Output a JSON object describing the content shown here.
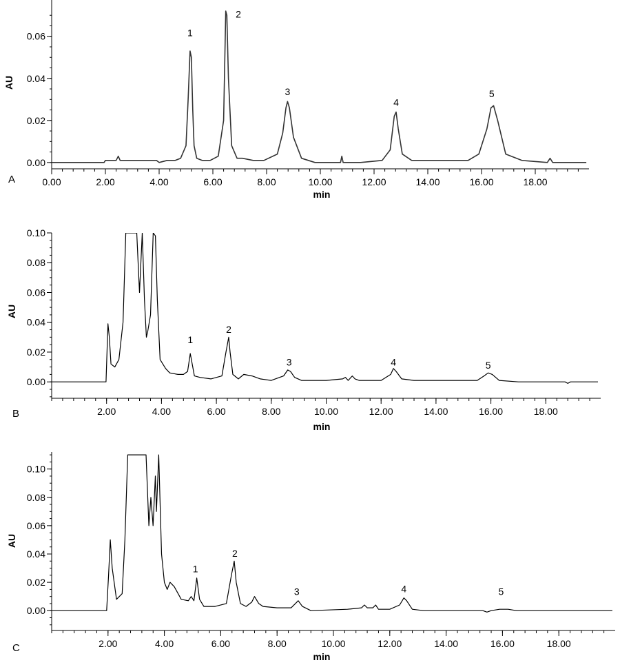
{
  "chart_data": [
    {
      "type": "line",
      "panel_label": "A",
      "xlabel": "min",
      "ylabel": "AU",
      "xlim": [
        0,
        20
      ],
      "ylim": [
        -0.003,
        0.074
      ],
      "x_ticks": [
        0,
        2,
        4,
        6,
        8,
        10,
        12,
        14,
        16,
        18
      ],
      "x_tick_labels": [
        "0.00",
        "2.00",
        "4.00",
        "6.00",
        "8.00",
        "10.00",
        "12.00",
        "14.00",
        "16.00",
        "18.00"
      ],
      "y_ticks": [
        0,
        0.02,
        0.04,
        0.06
      ],
      "y_tick_labels": [
        "0.00",
        "0.02",
        "0.04",
        "0.06"
      ],
      "series": [
        {
          "x": [
            0,
            1.95,
            2.0,
            2.3,
            2.4,
            2.48,
            2.55,
            2.7,
            3.0,
            3.5,
            3.9,
            4.0,
            4.3,
            4.6,
            4.8,
            5.0,
            5.08,
            5.15,
            5.2,
            5.25,
            5.3,
            5.4,
            5.6,
            5.9,
            6.2,
            6.4,
            6.48,
            6.52,
            6.58,
            6.7,
            6.9,
            7.1,
            7.5,
            7.9,
            8.4,
            8.6,
            8.72,
            8.78,
            8.85,
            9.0,
            9.3,
            9.8,
            10.3,
            10.75,
            10.8,
            10.85,
            11.5,
            12.3,
            12.6,
            12.75,
            12.82,
            12.9,
            13.05,
            13.4,
            14.0,
            15.0,
            15.5,
            15.9,
            16.2,
            16.35,
            16.45,
            16.6,
            16.9,
            17.5,
            18.45,
            18.55,
            18.65,
            19.9
          ],
          "y": [
            0.0,
            0.0,
            0.001,
            0.001,
            0.001,
            0.003,
            0.001,
            0.001,
            0.001,
            0.001,
            0.001,
            0.0,
            0.001,
            0.001,
            0.002,
            0.008,
            0.03,
            0.053,
            0.05,
            0.025,
            0.008,
            0.002,
            0.001,
            0.001,
            0.003,
            0.02,
            0.072,
            0.07,
            0.04,
            0.008,
            0.002,
            0.002,
            0.001,
            0.001,
            0.004,
            0.014,
            0.026,
            0.029,
            0.026,
            0.012,
            0.002,
            0.0,
            0.0,
            0.0,
            0.003,
            0.0,
            0.0,
            0.001,
            0.006,
            0.022,
            0.024,
            0.016,
            0.004,
            0.001,
            0.001,
            0.001,
            0.001,
            0.004,
            0.016,
            0.026,
            0.027,
            0.02,
            0.004,
            0.001,
            0.0,
            0.002,
            0.0,
            0.0
          ]
        }
      ],
      "annotations": [
        {
          "text": "1",
          "x": 5.15,
          "y": 0.06
        },
        {
          "text": "2",
          "x": 6.95,
          "y": 0.069
        },
        {
          "text": "3",
          "x": 8.78,
          "y": 0.032
        },
        {
          "text": "4",
          "x": 12.82,
          "y": 0.027
        },
        {
          "text": "5",
          "x": 16.38,
          "y": 0.031
        }
      ]
    },
    {
      "type": "line",
      "panel_label": "B",
      "xlabel": "min",
      "ylabel": "AU",
      "xlim": [
        0,
        20
      ],
      "ylim": [
        -0.011,
        0.1
      ],
      "x_ticks": [
        2,
        4,
        6,
        8,
        10,
        12,
        14,
        16,
        18
      ],
      "x_tick_labels": [
        "2.00",
        "4.00",
        "6.00",
        "8.00",
        "10.00",
        "12.00",
        "14.00",
        "16.00",
        "18.00"
      ],
      "y_ticks": [
        0,
        0.02,
        0.04,
        0.06,
        0.08,
        0.1
      ],
      "y_tick_labels": [
        "0.00",
        "0.02",
        "0.04",
        "0.06",
        "0.08",
        "0.10"
      ],
      "series": [
        {
          "x": [
            0,
            1.98,
            2.05,
            2.1,
            2.16,
            2.3,
            2.45,
            2.6,
            2.7,
            2.8,
            3.0,
            3.1,
            3.2,
            3.3,
            3.38,
            3.45,
            3.5,
            3.6,
            3.7,
            3.78,
            3.85,
            3.95,
            4.05,
            4.15,
            4.3,
            4.6,
            4.8,
            4.95,
            5.05,
            5.1,
            5.2,
            5.4,
            5.8,
            6.2,
            6.35,
            6.45,
            6.5,
            6.6,
            6.8,
            7.0,
            7.3,
            7.6,
            8.0,
            8.45,
            8.6,
            8.7,
            8.85,
            9.1,
            10.0,
            10.6,
            10.7,
            10.8,
            10.95,
            11.05,
            11.2,
            12.0,
            12.35,
            12.45,
            12.55,
            12.75,
            13.2,
            14.0,
            15.5,
            15.75,
            15.9,
            16.05,
            16.3,
            17.0,
            18.7,
            18.8,
            18.9,
            19.9
          ],
          "y": [
            0.0,
            0.0,
            0.039,
            0.03,
            0.012,
            0.01,
            0.015,
            0.04,
            0.1,
            0.1,
            0.1,
            0.1,
            0.06,
            0.1,
            0.055,
            0.03,
            0.034,
            0.045,
            0.1,
            0.098,
            0.055,
            0.015,
            0.012,
            0.009,
            0.006,
            0.005,
            0.005,
            0.007,
            0.019,
            0.014,
            0.004,
            0.003,
            0.002,
            0.004,
            0.02,
            0.03,
            0.02,
            0.005,
            0.002,
            0.005,
            0.004,
            0.002,
            0.001,
            0.004,
            0.008,
            0.007,
            0.003,
            0.001,
            0.001,
            0.002,
            0.003,
            0.001,
            0.004,
            0.002,
            0.001,
            0.001,
            0.005,
            0.009,
            0.007,
            0.002,
            0.001,
            0.001,
            0.001,
            0.004,
            0.006,
            0.005,
            0.001,
            0.0,
            0.0,
            -0.001,
            0.0,
            0.0
          ]
        }
      ],
      "annotations": [
        {
          "text": "1",
          "x": 5.05,
          "y": 0.026
        },
        {
          "text": "2",
          "x": 6.45,
          "y": 0.033
        },
        {
          "text": "3",
          "x": 8.65,
          "y": 0.011
        },
        {
          "text": "4",
          "x": 12.45,
          "y": 0.011
        },
        {
          "text": "5",
          "x": 15.9,
          "y": 0.009
        }
      ]
    },
    {
      "type": "line",
      "panel_label": "C",
      "xlabel": "min",
      "ylabel": "AU",
      "xlim": [
        0,
        20
      ],
      "ylim": [
        -0.014,
        0.112
      ],
      "x_ticks": [
        2,
        4,
        6,
        8,
        10,
        12,
        14,
        16,
        18
      ],
      "x_tick_labels": [
        "2.00",
        "4.00",
        "6.00",
        "8.00",
        "10.00",
        "12.00",
        "14.00",
        "16.00",
        "18.00"
      ],
      "y_ticks": [
        0,
        0.02,
        0.04,
        0.06,
        0.08,
        0.1
      ],
      "y_tick_labels": [
        "0.00",
        "0.02",
        "0.04",
        "0.06",
        "0.08",
        "0.10"
      ],
      "series": [
        {
          "x": [
            0,
            1.95,
            2.02,
            2.08,
            2.15,
            2.3,
            2.5,
            2.6,
            2.7,
            2.8,
            3.2,
            3.35,
            3.45,
            3.52,
            3.6,
            3.68,
            3.72,
            3.8,
            3.9,
            4.0,
            4.1,
            4.2,
            4.35,
            4.6,
            4.85,
            4.95,
            5.05,
            5.15,
            5.25,
            5.4,
            5.8,
            6.2,
            6.38,
            6.48,
            6.55,
            6.7,
            6.9,
            7.1,
            7.2,
            7.35,
            7.5,
            8.0,
            8.5,
            8.65,
            8.75,
            8.9,
            9.2,
            10.5,
            11.0,
            11.1,
            11.2,
            11.4,
            11.5,
            11.6,
            12.0,
            12.35,
            12.5,
            12.6,
            12.8,
            13.2,
            15.3,
            15.45,
            15.6,
            15.9,
            16.2,
            16.5,
            19.9
          ],
          "y": [
            0.0,
            0.0,
            0.025,
            0.05,
            0.03,
            0.008,
            0.012,
            0.05,
            0.11,
            0.11,
            0.11,
            0.11,
            0.06,
            0.08,
            0.06,
            0.095,
            0.07,
            0.11,
            0.04,
            0.02,
            0.015,
            0.02,
            0.017,
            0.008,
            0.007,
            0.01,
            0.007,
            0.023,
            0.008,
            0.003,
            0.003,
            0.005,
            0.025,
            0.035,
            0.02,
            0.005,
            0.003,
            0.006,
            0.01,
            0.005,
            0.003,
            0.002,
            0.002,
            0.005,
            0.007,
            0.003,
            0.0,
            0.001,
            0.002,
            0.004,
            0.002,
            0.002,
            0.004,
            0.001,
            0.001,
            0.004,
            0.009,
            0.007,
            0.001,
            0.0,
            0.0,
            -0.001,
            0.0,
            0.001,
            0.001,
            0.0,
            0.0
          ]
        }
      ],
      "annotations": [
        {
          "text": "1",
          "x": 5.1,
          "y": 0.027
        },
        {
          "text": "2",
          "x": 6.5,
          "y": 0.038
        },
        {
          "text": "3",
          "x": 8.7,
          "y": 0.011
        },
        {
          "text": "4",
          "x": 12.5,
          "y": 0.013
        },
        {
          "text": "5",
          "x": 15.95,
          "y": 0.011
        }
      ]
    }
  ]
}
